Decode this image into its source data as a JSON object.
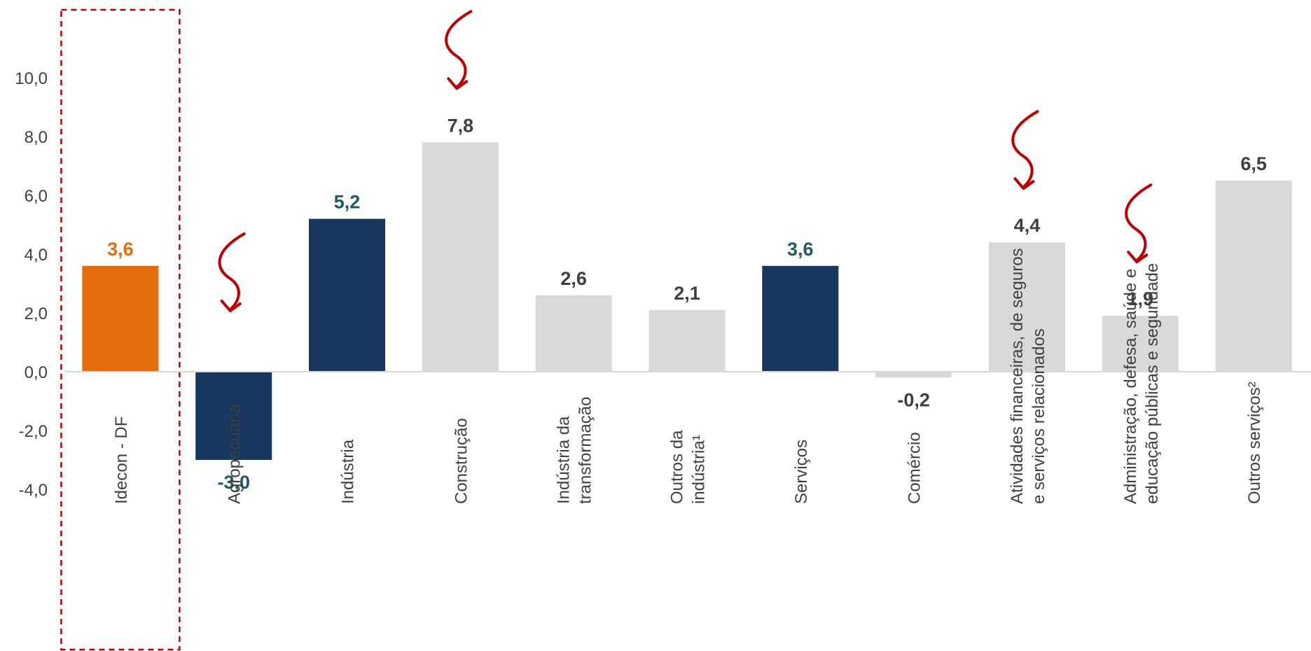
{
  "chart_data": {
    "type": "bar",
    "title": "",
    "xlabel": "",
    "ylabel": "",
    "ylim": [
      -4,
      12
    ],
    "yticks": [
      "10,0",
      "8,0",
      "6,0",
      "4,0",
      "2,0",
      "0,0",
      "-2,0",
      "-4,0"
    ],
    "ytick_values": [
      10,
      8,
      6,
      4,
      2,
      0,
      -2,
      -4
    ],
    "grid": false,
    "legend": "none",
    "categories": [
      [
        "Idecon - DF"
      ],
      [
        "Agropecuária"
      ],
      [
        "Indústria"
      ],
      [
        "Construção"
      ],
      [
        "Indústria da",
        "transformação"
      ],
      [
        "Outros da",
        "indústria¹"
      ],
      [
        "Serviços"
      ],
      [
        "Comércio"
      ],
      [
        "Atividades financeiras, de seguros",
        "e serviços relacionados"
      ],
      [
        "Administração, defesa, saúde e",
        "educação públicas e seguridade"
      ],
      [
        "Outros serviços²"
      ]
    ],
    "values": [
      3.6,
      -3.0,
      5.2,
      7.8,
      2.6,
      2.1,
      3.6,
      -0.2,
      4.4,
      1.9,
      6.5
    ],
    "value_labels": [
      "3,6",
      "-3,0",
      "5,2",
      "7,8",
      "2,6",
      "2,1",
      "3,6",
      "-0,2",
      "4,4",
      "1,9",
      "6,5"
    ],
    "bar_groups": [
      "total",
      "sector",
      "sector",
      "sub",
      "sub",
      "sub",
      "sector",
      "sub",
      "sub",
      "sub",
      "sub"
    ],
    "highlighted": [
      0
    ],
    "arrows_at": [
      1,
      3,
      8,
      9
    ],
    "colors": {
      "total": "#E46C0A",
      "sector": "#17375E",
      "sub": "#D9D9D9",
      "total_label": "#E46C0A",
      "sector_label": "#215968",
      "sub_label": "#404040",
      "axis": "#D9D9D9",
      "arrow": "#C00000",
      "highlight_box": "#C00000"
    }
  }
}
